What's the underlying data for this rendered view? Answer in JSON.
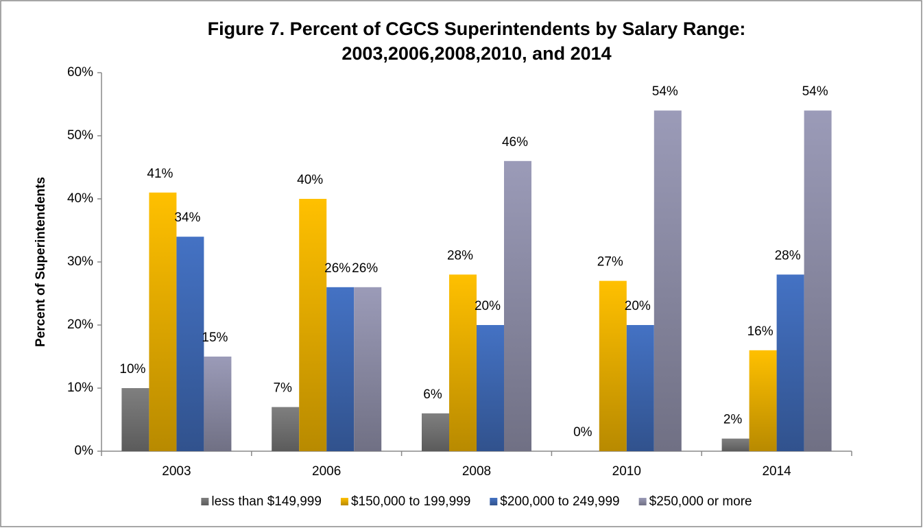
{
  "chart_data": {
    "type": "bar",
    "title": [
      "Figure 7. Percent of CGCS Superintendents by Salary Range:",
      "2003,2006,2008,2010, and 2014"
    ],
    "y_label": "Percent of Superintendents",
    "categories": [
      "2003",
      "2006",
      "2008",
      "2010",
      "2014"
    ],
    "series": [
      {
        "name": "less than $149,999",
        "color": "#7f7f7f",
        "values": [
          10,
          7,
          6,
          0,
          2
        ],
        "value_labels": [
          "10%",
          "7%",
          "6%",
          "0%",
          "2%"
        ]
      },
      {
        "name": "$150,000 to 199,999",
        "color": "#ffc000",
        "values": [
          41,
          40,
          28,
          27,
          16
        ],
        "value_labels": [
          "41%",
          "40%",
          "28%",
          "27%",
          "16%"
        ]
      },
      {
        "name": "$200,000 to 249,999",
        "color": "#4472c4",
        "values": [
          34,
          26,
          20,
          20,
          28
        ],
        "value_labels": [
          "34%",
          "26%",
          "20%",
          "20%",
          "28%"
        ]
      },
      {
        "name": "$250,000 or more",
        "color": "#9b9bb8",
        "values": [
          15,
          26,
          46,
          54,
          54
        ],
        "value_labels": [
          "15%",
          "26%",
          "46%",
          "54%",
          "54%"
        ]
      }
    ],
    "ylim": [
      0,
      60
    ],
    "yticks": [
      {
        "value": 0,
        "label": "0%"
      },
      {
        "value": 10,
        "label": "10%"
      },
      {
        "value": 20,
        "label": "20%"
      },
      {
        "value": 30,
        "label": "30%"
      },
      {
        "value": 40,
        "label": "40%"
      },
      {
        "value": 50,
        "label": "50%"
      },
      {
        "value": 60,
        "label": "60%"
      }
    ],
    "grid": false,
    "legend": "bottom"
  }
}
